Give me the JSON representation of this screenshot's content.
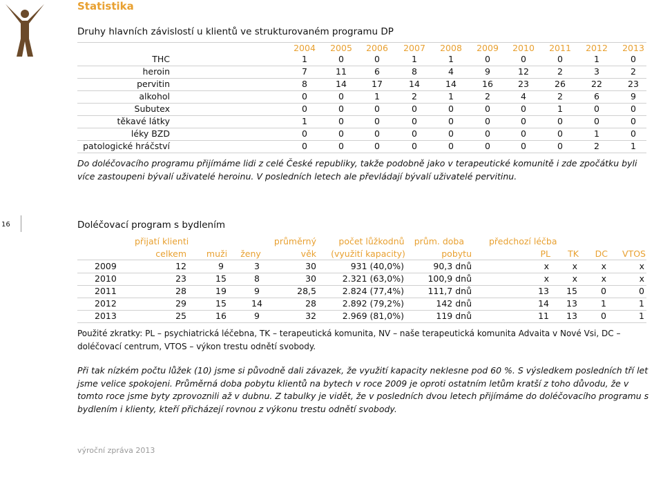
{
  "header": {
    "section": "Statistika"
  },
  "table1": {
    "title": "Druhy hlavních závislostí u klientů ve strukturovaném programu DP",
    "columns": [
      2004,
      2005,
      2006,
      2007,
      2008,
      2009,
      2010,
      2011,
      2012,
      2013
    ],
    "rows": [
      {
        "label": "THC",
        "values": [
          1,
          0,
          0,
          1,
          1,
          0,
          0,
          0,
          1,
          0
        ]
      },
      {
        "label": "heroin",
        "values": [
          7,
          11,
          6,
          8,
          4,
          9,
          12,
          2,
          3,
          2
        ]
      },
      {
        "label": "pervitin",
        "values": [
          8,
          14,
          17,
          14,
          14,
          16,
          23,
          26,
          22,
          23
        ]
      },
      {
        "label": "alkohol",
        "values": [
          0,
          0,
          1,
          2,
          1,
          2,
          4,
          2,
          6,
          9
        ]
      },
      {
        "label": "Subutex",
        "values": [
          0,
          0,
          0,
          0,
          0,
          0,
          0,
          1,
          0,
          0
        ]
      },
      {
        "label": "těkavé látky",
        "values": [
          1,
          0,
          0,
          0,
          0,
          0,
          0,
          0,
          0,
          0
        ]
      },
      {
        "label": "léky BZD",
        "values": [
          0,
          0,
          0,
          0,
          0,
          0,
          0,
          0,
          1,
          0
        ]
      },
      {
        "label": "patologické hráčství",
        "values": [
          0,
          0,
          0,
          0,
          0,
          0,
          0,
          0,
          2,
          1
        ]
      }
    ]
  },
  "table1_note": "Do doléčovacího programu přijímáme lidi z celé České republiky, takže podobně jako v terapeutické komunitě i zde zpočátku byli více zastoupeni bývalí uživatelé heroinu. V posledních letech ale převládají bývalí uživatelé pervitinu.",
  "page_number": "16",
  "table2": {
    "title": "Doléčovací program s bydlením",
    "header_top": [
      "přijatí klienti",
      "průměrný",
      "počet lůžkodnů",
      "prům. doba",
      "předchozí léčba"
    ],
    "header_bottom": [
      "celkem",
      "muži",
      "ženy",
      "věk",
      "(využití kapacity)",
      "pobytu",
      "PL",
      "TK",
      "DC",
      "VTOS"
    ],
    "rows": [
      [
        "2009",
        "12",
        "9",
        "3",
        "30",
        "931 (40,0%)",
        "90,3 dnů",
        "x",
        "x",
        "x",
        "x"
      ],
      [
        "2010",
        "23",
        "15",
        "8",
        "30",
        "2.321 (63,0%)",
        "100,9 dnů",
        "x",
        "x",
        "x",
        "x"
      ],
      [
        "2011",
        "28",
        "19",
        "9",
        "28,5",
        "2.824 (77,4%)",
        "111,7 dnů",
        "13",
        "15",
        "0",
        "0"
      ],
      [
        "2012",
        "29",
        "15",
        "14",
        "28",
        "2.892 (79,2%)",
        "142 dnů",
        "14",
        "13",
        "1",
        "1"
      ],
      [
        "2013",
        "25",
        "16",
        "9",
        "32",
        "2.969 (81,0%)",
        "119 dnů",
        "11",
        "13",
        "0",
        "1"
      ]
    ]
  },
  "abbreviations": "Použité zkratky: PL – psychiatrická léčebna, TK – terapeutická komunita, NV – naše terapeutická komunita Advaita v Nové Vsi, DC – doléčovací centrum, VTOS – výkon trestu odnětí svobody.",
  "commentary": "Při tak nízkém počtu lůžek (10) jsme si původně dali závazek, že využití kapacity neklesne pod 60 %. S výsledkem posledních tří let jsme velice spokojeni. Průměrná doba pobytu klientů na bytech v roce 2009 je oproti ostatním letům kratší z toho důvodu, že v tomto roce jsme byty zprovoznili až v dubnu. Z tabulky je vidět, že v posledních dvou letech přijímáme do doléčovacího programu s bydlením i klienty, kteří přicházejí rovnou z výkonu trestu odnětí svobody.",
  "footer": "výroční zpráva 2013"
}
